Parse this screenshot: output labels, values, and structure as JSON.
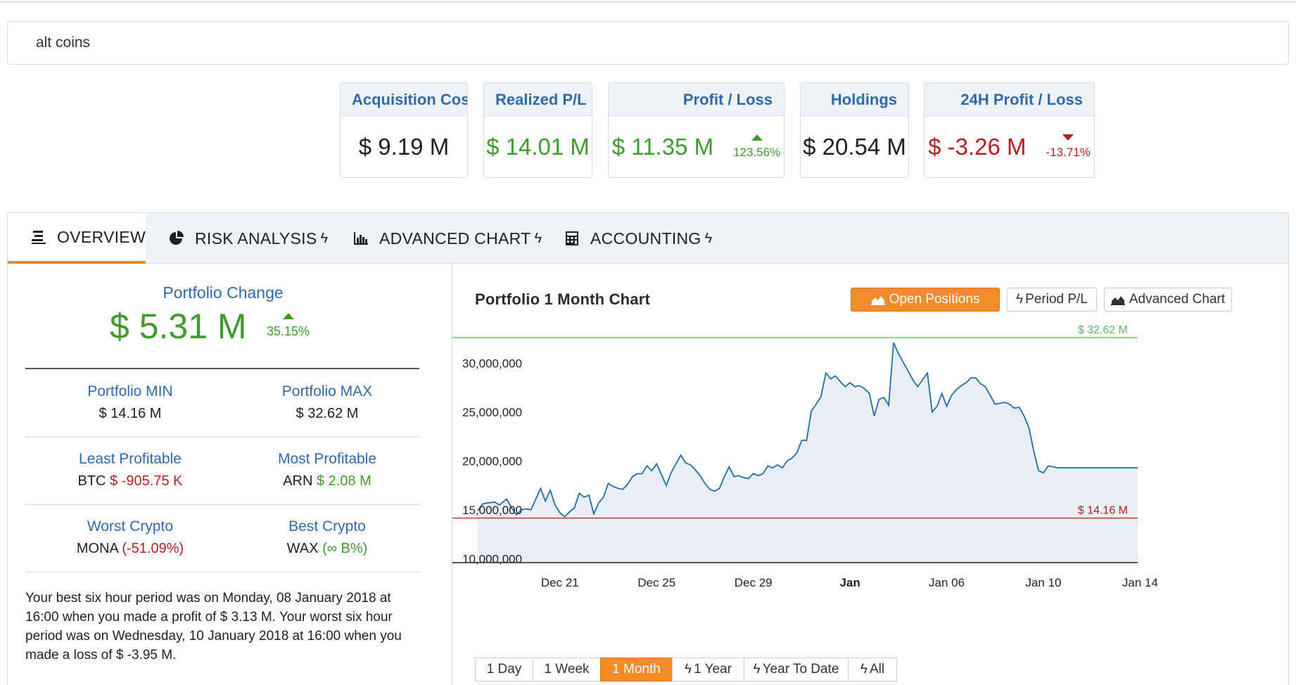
{
  "search": {
    "value": "alt coins"
  },
  "cards": [
    {
      "label": "Acquisition Cost",
      "value": "$ 9.19 M",
      "tone": "dark",
      "pct": "",
      "dir": ""
    },
    {
      "label": "Realized P/L",
      "value": "$ 14.01 M",
      "tone": "green",
      "pct": "",
      "dir": ""
    },
    {
      "label": "Profit / Loss",
      "value": "$ 11.35 M",
      "tone": "green",
      "pct": "123.56%",
      "dir": "up"
    },
    {
      "label": "Holdings",
      "value": "$ 20.54 M",
      "tone": "dark",
      "pct": "",
      "dir": ""
    },
    {
      "label": "24H Profit / Loss",
      "value": "$ -3.26 M",
      "tone": "red",
      "pct": "-13.71%",
      "dir": "down"
    }
  ],
  "tabs": [
    {
      "label": "OVERVIEW",
      "icon": "list-icon",
      "bolt": ""
    },
    {
      "label": "RISK ANALYSIS",
      "icon": "pie-chart-icon",
      "bolt": "ϟ"
    },
    {
      "label": "ADVANCED CHART",
      "icon": "bar-chart-icon",
      "bolt": "ϟ"
    },
    {
      "label": "ACCOUNTING",
      "icon": "calculator-icon",
      "bolt": "ϟ"
    }
  ],
  "overview": {
    "portfolio_change": {
      "label": "Portfolio Change",
      "value": "$ 5.31 M",
      "pct": "35.15%"
    },
    "stats": {
      "min_label": "Portfolio MIN",
      "min_value": "$ 14.16 M",
      "max_label": "Portfolio MAX",
      "max_value": "$ 32.62 M",
      "least_label": "Least Profitable",
      "least_coin": "BTC",
      "least_value": "$ -905.75 K",
      "most_label": "Most Profitable",
      "most_coin": "ARN",
      "most_value": "$ 2.08 M",
      "worst_label": "Worst Crypto",
      "worst_coin": "MONA",
      "worst_value": "(-51.09%)",
      "best_label": "Best Crypto",
      "best_coin": "WAX",
      "best_value": "(∞ B%)"
    },
    "summary": "Your best six hour period was on Monday, 08 January 2018 at 16:00 when you made a profit of $ 3.13 M. Your worst six hour period was on Wednesday, 10 January 2018 at 16:00 when you made a loss of $ -3.95 M."
  },
  "chart_panel": {
    "title": "Portfolio 1 Month Chart",
    "buttons": [
      {
        "label": "Open Positions",
        "icon": "area-chart-icon",
        "active": true
      },
      {
        "label": "Period P/L",
        "icon": "bolt-icon",
        "active": false
      },
      {
        "label": "Advanced Chart",
        "icon": "area-chart-icon",
        "active": false
      }
    ],
    "ranges": [
      {
        "label": "1 Day",
        "bolt": false,
        "active": false
      },
      {
        "label": "1 Week",
        "bolt": false,
        "active": false
      },
      {
        "label": "1 Month",
        "bolt": false,
        "active": true
      },
      {
        "label": "1 Year",
        "bolt": true,
        "active": false
      },
      {
        "label": "Year To Date",
        "bolt": true,
        "active": false
      },
      {
        "label": "All",
        "bolt": true,
        "active": false
      }
    ]
  },
  "chart_data": {
    "type": "area",
    "title": "Portfolio 1 Month Chart",
    "ylim": [
      9600000,
      32620000
    ],
    "yticks": [
      10000000,
      15000000,
      20000000,
      25000000,
      30000000
    ],
    "ytick_labels": [
      "10,000,000",
      "15,000,000",
      "20,000,000",
      "25,000,000",
      "30,000,000"
    ],
    "xlim": [
      -0.4,
      26.9
    ],
    "xticks": [
      3,
      7,
      11,
      15,
      19,
      23,
      27
    ],
    "xtick_labels": [
      "Dec 21",
      "Dec 25",
      "Dec 29",
      "Jan",
      "Jan 06",
      "Jan 10",
      "Jan 14"
    ],
    "max_line": {
      "value": 32620000,
      "label": "$ 32.62 M",
      "color": "#5cb85c"
    },
    "min_line": {
      "value": 14160000,
      "label": "$ 14.16 M",
      "color": "#b52020"
    },
    "line_color": "#1f6fa3",
    "fill_color": "#e8eef5",
    "x": [
      -0.4,
      -0.2,
      0.0,
      0.3,
      0.5,
      0.8,
      1.0,
      1.2,
      1.4,
      1.6,
      1.8,
      2.0,
      2.2,
      2.4,
      2.6,
      2.8,
      3.0,
      3.2,
      3.4,
      3.6,
      3.8,
      4.0,
      4.2,
      4.4,
      4.6,
      4.8,
      5.0,
      5.2,
      5.4,
      5.6,
      5.8,
      6.0,
      6.2,
      6.4,
      6.6,
      6.8,
      7.0,
      7.2,
      7.4,
      7.6,
      7.8,
      8.0,
      8.2,
      8.4,
      8.6,
      8.8,
      9.0,
      9.2,
      9.4,
      9.6,
      9.8,
      10.0,
      10.2,
      10.4,
      10.6,
      10.8,
      11.0,
      11.2,
      11.4,
      11.6,
      11.8,
      12.0,
      12.2,
      12.4,
      12.6,
      12.8,
      13.0,
      13.2,
      13.4,
      13.6,
      13.8,
      14.0,
      14.2,
      14.4,
      14.6,
      14.8,
      15.0,
      15.2,
      15.4,
      15.6,
      15.8,
      16.0,
      16.2,
      16.4,
      16.6,
      16.8,
      17.0,
      17.2,
      17.4,
      17.6,
      17.8,
      18.0,
      18.2,
      18.4,
      18.6,
      18.8,
      19.0,
      19.2,
      19.4,
      19.6,
      19.8,
      20.0,
      20.2,
      20.4,
      20.6,
      20.8,
      21.0,
      21.2,
      21.4,
      21.6,
      21.8,
      22.0,
      22.2,
      22.4,
      22.6,
      22.8,
      23.0,
      23.2,
      23.4,
      23.6,
      23.8,
      24.0,
      24.2,
      24.4,
      24.6,
      24.8,
      25.0,
      25.2,
      25.4,
      25.6,
      25.8,
      26.0,
      26.2,
      26.4,
      26.6,
      26.9
    ],
    "values": [
      14900000,
      15600000,
      15700000,
      15800000,
      15500000,
      16100000,
      15200000,
      14500000,
      15000000,
      15100000,
      15000000,
      16100000,
      17200000,
      15900000,
      17000000,
      15500000,
      14700000,
      14300000,
      14800000,
      15200000,
      16700000,
      16300000,
      16500000,
      14600000,
      15700000,
      16300000,
      17700000,
      17400000,
      17200000,
      17100000,
      17600000,
      18400000,
      18700000,
      18700000,
      19500000,
      19000000,
      19700000,
      18600000,
      17500000,
      18800000,
      19700000,
      20600000,
      19800000,
      19600000,
      19100000,
      18500000,
      17700000,
      17100000,
      16900000,
      17200000,
      18400000,
      19400000,
      18400000,
      18500000,
      18300000,
      18200000,
      18700000,
      18500000,
      18700000,
      19500000,
      19300000,
      19600000,
      19300000,
      20000000,
      20300000,
      20800000,
      22100000,
      22100000,
      25100000,
      25800000,
      26600000,
      29000000,
      28400000,
      28700000,
      28100000,
      27600000,
      28000000,
      27600000,
      27700000,
      27400000,
      26900000,
      24600000,
      26300000,
      26500000,
      25700000,
      32100000,
      31000000,
      30100000,
      29200000,
      28300000,
      27600000,
      28300000,
      29000000,
      25000000,
      25600000,
      26900000,
      25600000,
      26700000,
      27300000,
      27700000,
      28000000,
      28500000,
      28500000,
      27900000,
      27600000,
      26700000,
      25800000,
      25900000,
      26000000,
      25800000,
      25400000,
      25500000,
      24600000,
      23400000,
      21000000,
      19000000,
      18800000,
      19500000,
      19400000,
      19300000,
      19300000,
      19300000,
      19300000,
      19300000,
      19300000,
      19300000,
      19300000,
      19300000,
      19300000,
      19300000,
      19300000,
      19300000,
      19300000,
      19300000,
      19300000,
      19300000
    ]
  }
}
